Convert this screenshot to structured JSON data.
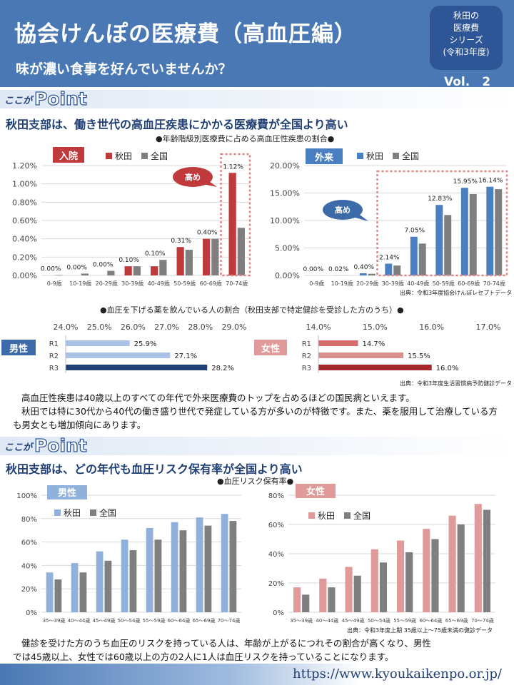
{
  "header": {
    "title": "協会けんぽの医療費（高血圧編）",
    "subtitle": "味が濃い食事を好んでいませんか？",
    "series_badge": [
      "秋田の",
      "医療費",
      "シリーズ",
      "(令和3年度)"
    ],
    "volume": "Vol.　2"
  },
  "point_label": {
    "prefix": "ここが",
    "word": "Point"
  },
  "section1": {
    "heading": "秋田支部は、働き世代の高血圧疾患にかかる医療費が全国より高い",
    "caption_top": "●年齢階級別医療費に占める高血圧性疾患の割合●",
    "caption_mid": "●血圧を下げる薬を飲んでいる人の割合（秋田支部で特定健診を受診した方のうち）●",
    "source_top": "出典：令和3年度協会けんぽレセプトデータ",
    "source_mid": "出典：令和3年度生活習慣病予防健診データ",
    "text": [
      "高血圧性疾患は40歳以上のすべての年代で外来医療費のトップを占めるほどの国民病といえます。",
      "秋田では特に30代から40代の働き盛り世代で発症している方が多いのが特徴です。また、薬を服用して治療している方も男女とも増加傾向にあります。"
    ]
  },
  "section2": {
    "heading": "秋田支部は、どの年代も血圧リスク保有率が全国より高い",
    "caption": "●血圧リスク保有率●",
    "source": "出典：令和3年度上期 35歳以上～75歳未満の健診データ",
    "text": [
      "健診を受けた方のうち血圧のリスクを持っている人は、年齢が上がるにつれその割合が高くなり、男性",
      "では45歳以上、女性では60歳以上の方の2人に1人は血圧リスクを持っていることになります。"
    ]
  },
  "footer": {
    "url": "https://www.kyoukaikenpo.or.jp/"
  },
  "colors": {
    "akita_inpatient": "#c0393b",
    "national": "#7f7f7f",
    "akita_outpatient": "#4a7fc1",
    "men_akita": "#8fb1dc",
    "women_akita": "#e09a9a",
    "highlight_box": "#e08585",
    "callout": "#c0393b",
    "callout_blue": "#3d6aa8"
  },
  "chart_data": [
    {
      "id": "inpatient",
      "type": "bar",
      "label": "入院",
      "categories": [
        "0-9歳",
        "10-19歳",
        "20-29歳",
        "30-39歳",
        "40-49歳",
        "50-59歳",
        "60-69歳",
        "70-74歳"
      ],
      "series": [
        {
          "name": "秋田",
          "values": [
            0.0,
            0.0,
            0.0,
            0.1,
            0.1,
            0.31,
            0.4,
            1.12
          ],
          "labels": [
            "0.00%",
            "0.00%",
            "0.00%",
            "0.10%",
            "0.10%",
            "0.31%",
            "0.40%",
            "1.12%"
          ]
        },
        {
          "name": "全国",
          "values": [
            0.005,
            0.02,
            0.05,
            0.1,
            0.17,
            0.28,
            0.4,
            0.52
          ]
        }
      ],
      "ylim": [
        0,
        1.2
      ],
      "yticks": [
        "0.00%",
        "0.20%",
        "0.40%",
        "0.60%",
        "0.80%",
        "1.00%",
        "1.20%"
      ],
      "callout": "高め"
    },
    {
      "id": "outpatient",
      "type": "bar",
      "label": "外来",
      "categories": [
        "0-9歳",
        "10-19歳",
        "20-29歳",
        "30-39歳",
        "40-49歳",
        "50-59歳",
        "60-69歳",
        "70-74歳"
      ],
      "series": [
        {
          "name": "秋田",
          "values": [
            0.0,
            0.02,
            0.4,
            2.14,
            7.05,
            12.83,
            15.95,
            16.14
          ],
          "labels": [
            "0.00%",
            "0.02%",
            "0.40%",
            "2.14%",
            "7.05%",
            "12.83%",
            "15.95%",
            "16.14%"
          ]
        },
        {
          "name": "全国",
          "values": [
            0.01,
            0.02,
            0.3,
            1.8,
            5.8,
            11.0,
            14.8,
            15.7
          ]
        }
      ],
      "ylim": [
        0,
        20
      ],
      "yticks": [
        "0.00%",
        "5.00%",
        "10.00%",
        "15.00%",
        "20.00%"
      ],
      "callout": "高め"
    },
    {
      "id": "men_medication",
      "type": "bar",
      "label": "男性",
      "orientation": "horizontal",
      "categories": [
        "R1",
        "R2",
        "R3"
      ],
      "values": [
        25.9,
        27.1,
        28.2
      ],
      "labels": [
        "25.9%",
        "27.1%",
        "28.2%"
      ],
      "xlim": [
        24,
        29
      ],
      "xticks": [
        "24.0%",
        "25.0%",
        "26.0%",
        "27.0%",
        "28.0%",
        "29.0%"
      ]
    },
    {
      "id": "women_medication",
      "type": "bar",
      "label": "女性",
      "orientation": "horizontal",
      "categories": [
        "R1",
        "R2",
        "R3"
      ],
      "values": [
        14.7,
        15.5,
        16.0
      ],
      "labels": [
        "14.7%",
        "15.5%",
        "16.0%"
      ],
      "xlim": [
        14,
        17
      ],
      "xticks": [
        "14.0%",
        "15.0%",
        "16.0%",
        "17.0%"
      ]
    },
    {
      "id": "men_risk",
      "type": "bar",
      "label": "男性",
      "categories": [
        "35～39歳",
        "40～44歳",
        "45～49歳",
        "50～54歳",
        "55～59歳",
        "60～64歳",
        "65～69歳",
        "70～74歳"
      ],
      "series": [
        {
          "name": "秋田",
          "values": [
            34,
            42,
            52,
            62,
            72,
            77,
            81,
            84
          ]
        },
        {
          "name": "全国",
          "values": [
            28,
            34,
            44,
            53,
            62,
            70,
            74,
            78
          ]
        }
      ],
      "ylim": [
        0,
        100
      ],
      "yticks": [
        "0%",
        "20%",
        "40%",
        "60%",
        "80%",
        "100%"
      ]
    },
    {
      "id": "women_risk",
      "type": "bar",
      "label": "女性",
      "categories": [
        "35～39歳",
        "40～44歳",
        "45～49歳",
        "50～54歳",
        "55～59歳",
        "60～64歳",
        "65～69歳",
        "70～74歳"
      ],
      "series": [
        {
          "name": "秋田",
          "values": [
            17,
            23,
            31,
            43,
            49,
            57,
            66,
            74
          ]
        },
        {
          "name": "全国",
          "values": [
            12,
            17,
            25,
            34,
            41,
            50,
            60,
            70
          ]
        }
      ],
      "ylim": [
        0,
        80
      ],
      "yticks": [
        "0%",
        "20%",
        "40%",
        "60%",
        "80%"
      ]
    }
  ]
}
